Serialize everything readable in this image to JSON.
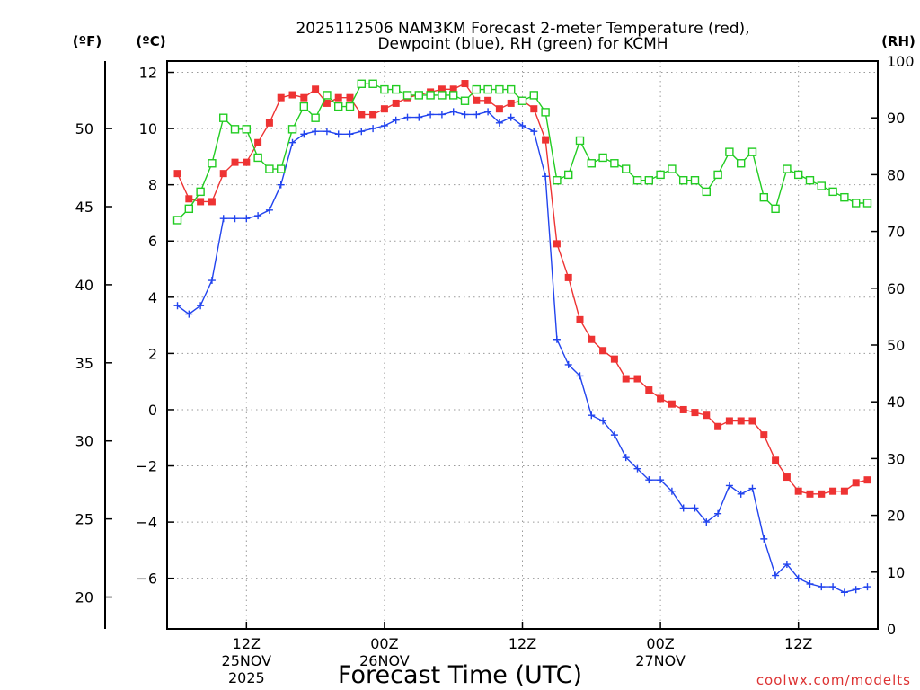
{
  "chart_data": {
    "type": "line",
    "title_line1": "2025112506 NAM3KM Forecast 2-meter Temperature (red),",
    "title_line2": "Dewpoint (blue), RH (green) for KCMH",
    "xlabel": "Forecast Time (UTC)",
    "watermark": "coolwx.com/modelts",
    "unit_labels": {
      "fahrenheit": "(ºF)",
      "celsius": "(ºC)",
      "rh": "(RH)"
    },
    "ylim_c": [
      -7.8,
      12.4
    ],
    "ylim_rh": [
      0,
      100
    ],
    "xlim_hours": [
      -0.9,
      60.9
    ],
    "celsius_ticks": [
      "12",
      "10",
      "8",
      "6",
      "4",
      "2",
      "0",
      "−2",
      "−4",
      "−6"
    ],
    "celsius_tick_values": [
      12,
      10,
      8,
      6,
      4,
      2,
      0,
      -2,
      -4,
      -6
    ],
    "fahrenheit_ticks": [
      "50",
      "45",
      "40",
      "35",
      "30",
      "25",
      "20"
    ],
    "fahrenheit_tick_values": [
      50,
      45,
      40,
      35,
      30,
      25,
      20
    ],
    "rh_ticks": [
      "100",
      "90",
      "80",
      "70",
      "60",
      "50",
      "40",
      "30",
      "20",
      "10",
      "0"
    ],
    "rh_tick_values": [
      100,
      90,
      80,
      70,
      60,
      50,
      40,
      30,
      20,
      10,
      0
    ],
    "x_ticks": [
      {
        "hour": 6,
        "line1": "12Z",
        "line2": "25NOV",
        "line3": "2025"
      },
      {
        "hour": 18,
        "line1": "00Z",
        "line2": "26NOV",
        "line3": ""
      },
      {
        "hour": 30,
        "line1": "12Z",
        "line2": "",
        "line3": ""
      },
      {
        "hour": 42,
        "line1": "00Z",
        "line2": "27NOV",
        "line3": ""
      },
      {
        "hour": 54,
        "line1": "12Z",
        "line2": "",
        "line3": ""
      }
    ],
    "x_hours": [
      0,
      1,
      2,
      3,
      4,
      5,
      6,
      7,
      8,
      9,
      10,
      11,
      12,
      13,
      14,
      15,
      16,
      17,
      18,
      19,
      20,
      21,
      22,
      23,
      24,
      25,
      26,
      27,
      28,
      29,
      30,
      31,
      32,
      33,
      34,
      35,
      36,
      37,
      38,
      39,
      40,
      41,
      42,
      43,
      44,
      45,
      46,
      47,
      48,
      49,
      50,
      51,
      52,
      53,
      54,
      55,
      56,
      57,
      58,
      59,
      60
    ],
    "series": [
      {
        "name": "Temperature (°C)",
        "color": "#ee3333",
        "marker": "filled-square",
        "values": [
          8.4,
          7.5,
          7.4,
          7.4,
          8.4,
          8.8,
          8.8,
          9.5,
          10.2,
          11.1,
          11.2,
          11.1,
          11.4,
          10.9,
          11.1,
          11.1,
          10.5,
          10.5,
          10.7,
          10.9,
          11.1,
          11.2,
          11.3,
          11.4,
          11.4,
          11.6,
          11.0,
          11.0,
          10.7,
          10.9,
          11.0,
          10.7,
          9.6,
          5.9,
          4.7,
          3.2,
          2.5,
          2.1,
          1.8,
          1.1,
          1.1,
          0.7,
          0.4,
          0.2,
          0.0,
          -0.1,
          -0.2,
          -0.6,
          -0.4,
          -0.4,
          -0.4,
          -0.9,
          -1.8,
          -2.4,
          -2.9,
          -3.0,
          -3.0,
          -2.9,
          -2.9,
          -2.6,
          -2.5
        ]
      },
      {
        "name": "Dewpoint (°C)",
        "color": "#2244ee",
        "marker": "plus",
        "values": [
          3.7,
          3.4,
          3.7,
          4.6,
          6.8,
          6.8,
          6.8,
          6.9,
          7.1,
          8.0,
          9.5,
          9.8,
          9.9,
          9.9,
          9.8,
          9.8,
          9.9,
          10.0,
          10.1,
          10.3,
          10.4,
          10.4,
          10.5,
          10.5,
          10.6,
          10.5,
          10.5,
          10.6,
          10.2,
          10.4,
          10.1,
          9.9,
          8.3,
          2.5,
          1.6,
          1.2,
          -0.2,
          -0.4,
          -0.9,
          -1.7,
          -2.1,
          -2.5,
          -2.5,
          -2.9,
          -3.5,
          -3.5,
          -4.0,
          -3.7,
          -2.7,
          -3.0,
          -2.8,
          -4.6,
          -5.9,
          -5.5,
          -6.0,
          -6.2,
          -6.3,
          -6.3,
          -6.5,
          -6.4,
          -6.3
        ]
      },
      {
        "name": "RH (%)",
        "color": "#22cc22",
        "marker": "open-square",
        "values": [
          72,
          74,
          77,
          82,
          90,
          88,
          88,
          83,
          81,
          81,
          88,
          92,
          90,
          94,
          92,
          92,
          96,
          96,
          95,
          95,
          94,
          94,
          94,
          94,
          94,
          93,
          95,
          95,
          95,
          95,
          93,
          94,
          91,
          79,
          80,
          86,
          82,
          83,
          82,
          81,
          79,
          79,
          80,
          81,
          79,
          79,
          77,
          80,
          84,
          82,
          84,
          76,
          74,
          81,
          80,
          79,
          78,
          77,
          76,
          75,
          75
        ]
      }
    ]
  }
}
